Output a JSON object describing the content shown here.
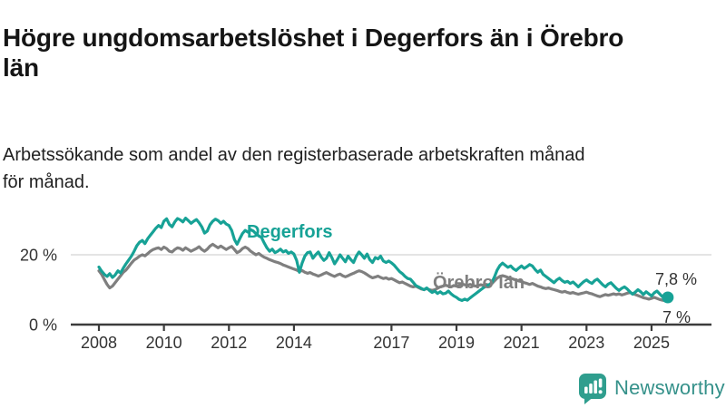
{
  "header": {
    "title": "Högre ungdomsarbetslöshet i Degerfors än i Örebro län",
    "subtitle": "Arbetssökande som andel av den registerbaserade arbetskraften månad för månad."
  },
  "colors": {
    "accent_teal": "#17a296",
    "line_gray": "#7f7f7f",
    "grid": "#dcdcdc",
    "axis": "#3c3c3c",
    "axis_text": "#333333",
    "title_text": "#151515",
    "end_label_text": "#333333",
    "logo_teal": "#2f9e8e",
    "logo_text": "#35918a"
  },
  "footer": {
    "brand": "Newsworthy",
    "logo_icon": "speech-bubble-bar-chart-icon"
  },
  "chart_data": {
    "type": "line",
    "title": "Högre ungdomsarbetslöshet i Degerfors än i Örebro län",
    "subtitle": "Arbetssökande som andel av den registerbaserade arbetskraften månad för månad.",
    "xlabel": "",
    "ylabel": "",
    "x_unit": "month",
    "x_start": {
      "year": 2008,
      "month": 1
    },
    "x_end": {
      "year": 2025,
      "month": 7
    },
    "ylim": [
      0,
      33
    ],
    "grid": "single horizontal gridline at 20%",
    "legend_position": "inline labels on lines",
    "yticks": [
      {
        "value": 20,
        "label": "20 %"
      },
      {
        "value": 0,
        "label": "0 %"
      }
    ],
    "xticks": [
      2008,
      2010,
      2012,
      2014,
      2017,
      2019,
      2021,
      2023,
      2025
    ],
    "series": [
      {
        "name": "Degerfors",
        "color": "#17a296",
        "end_label": "7,8 %",
        "end_value": 7.8,
        "values": [
          16.5,
          15.3,
          14.4,
          13.8,
          14.6,
          13.5,
          14.2,
          15.4,
          14.8,
          16.2,
          17.4,
          18.5,
          19.6,
          21.0,
          22.6,
          23.6,
          24.1,
          23.2,
          24.6,
          25.6,
          26.6,
          27.6,
          28.4,
          27.8,
          29.6,
          30.3,
          28.7,
          28.0,
          29.4,
          30.4,
          30.0,
          29.4,
          30.5,
          29.8,
          29.0,
          29.6,
          30.1,
          29.2,
          28.0,
          26.2,
          26.8,
          28.6,
          29.6,
          30.2,
          29.8,
          29.0,
          29.6,
          28.8,
          28.4,
          27.0,
          24.4,
          23.0,
          24.6,
          26.1,
          27.0,
          26.5,
          27.2,
          26.8,
          26.0,
          25.4,
          25.0,
          23.4,
          22.0,
          21.0,
          21.6,
          20.6,
          21.0,
          21.6,
          20.8,
          21.2,
          20.4,
          20.8,
          20.2,
          18.4,
          15.0,
          17.6,
          19.6,
          20.6,
          20.8,
          19.0,
          20.0,
          20.8,
          19.4,
          18.4,
          19.0,
          20.6,
          19.2,
          17.4,
          18.6,
          20.0,
          19.0,
          18.0,
          19.6,
          18.6,
          17.8,
          19.6,
          20.8,
          20.0,
          19.0,
          20.2,
          18.6,
          17.8,
          19.2,
          18.8,
          19.6,
          18.2,
          17.8,
          18.2,
          17.7,
          17.0,
          16.1,
          15.2,
          14.6,
          13.8,
          13.2,
          13.0,
          12.1,
          11.2,
          10.8,
          10.4,
          10.0,
          10.5,
          9.8,
          9.2,
          9.6,
          8.9,
          9.4,
          8.8,
          9.0,
          9.6,
          8.8,
          8.2,
          7.8,
          7.2,
          6.9,
          7.3,
          7.0,
          7.6,
          8.2,
          8.8,
          9.4,
          10.0,
          10.6,
          11.0,
          11.4,
          12.0,
          13.6,
          15.6,
          16.9,
          17.6,
          17.0,
          16.4,
          16.8,
          16.0,
          15.5,
          16.2,
          16.8,
          16.1,
          16.6,
          17.2,
          16.8,
          15.8,
          15.0,
          15.6,
          14.4,
          13.8,
          13.2,
          12.6,
          12.0,
          12.8,
          13.3,
          12.6,
          12.1,
          12.4,
          11.8,
          12.2,
          11.5,
          10.8,
          11.6,
          12.3,
          12.8,
          12.2,
          11.8,
          12.6,
          13.0,
          12.2,
          11.4,
          10.8,
          11.6,
          12.0,
          11.2,
          10.4,
          9.8,
          10.4,
          10.8,
          10.2,
          9.4,
          8.7,
          9.3,
          10.0,
          9.4,
          8.6,
          9.4,
          8.8,
          8.2,
          9.1,
          9.6,
          8.8,
          8.0,
          7.8,
          7.8
        ]
      },
      {
        "name": "Örebro län",
        "color": "#7f7f7f",
        "end_label": "7 %",
        "end_value": 7.0,
        "values": [
          15.4,
          14.4,
          12.9,
          11.5,
          10.5,
          11.0,
          12.0,
          13.0,
          14.0,
          15.0,
          15.6,
          16.6,
          17.6,
          18.5,
          19.0,
          19.6,
          20.0,
          19.7,
          20.3,
          21.0,
          21.5,
          21.8,
          22.0,
          21.5,
          22.2,
          21.8,
          21.0,
          20.8,
          21.5,
          22.0,
          21.8,
          21.3,
          22.0,
          21.5,
          21.0,
          21.4,
          21.8,
          22.3,
          21.5,
          21.0,
          21.6,
          22.5,
          23.0,
          22.5,
          22.0,
          22.5,
          22.0,
          21.5,
          22.0,
          22.4,
          21.5,
          20.6,
          21.0,
          21.8,
          22.2,
          21.8,
          21.0,
          20.5,
          20.0,
          20.4,
          19.8,
          19.3,
          19.0,
          18.6,
          18.3,
          18.0,
          17.8,
          17.5,
          17.1,
          16.8,
          16.5,
          16.2,
          15.9,
          15.6,
          15.2,
          15.5,
          15.0,
          14.7,
          14.9,
          14.5,
          14.2,
          13.9,
          14.2,
          14.6,
          14.9,
          14.5,
          14.1,
          13.8,
          14.2,
          14.5,
          14.0,
          13.7,
          14.0,
          14.4,
          14.7,
          15.1,
          15.4,
          15.2,
          14.8,
          14.3,
          13.8,
          13.4,
          13.6,
          13.9,
          13.5,
          13.2,
          13.4,
          13.0,
          13.2,
          12.8,
          12.4,
          12.0,
          12.2,
          11.8,
          11.4,
          11.0,
          10.8,
          11.0,
          10.6,
          10.2,
          10.0,
          10.3,
          10.0,
          9.8,
          10.0,
          10.4,
          10.8,
          11.0,
          11.3,
          11.0,
          10.8,
          11.2,
          11.0,
          11.3,
          11.6,
          11.4,
          11.2,
          11.5,
          11.3,
          11.0,
          11.2,
          11.4,
          11.2,
          11.5,
          11.3,
          11.7,
          12.5,
          13.3,
          13.8,
          14.0,
          13.8,
          13.5,
          13.3,
          13.0,
          12.8,
          12.5,
          12.3,
          12.0,
          11.8,
          11.5,
          11.8,
          11.4,
          11.0,
          10.8,
          10.5,
          10.3,
          10.5,
          10.2,
          10.0,
          9.8,
          9.5,
          9.3,
          9.5,
          9.2,
          9.0,
          9.2,
          8.9,
          8.7,
          8.9,
          9.1,
          9.3,
          9.0,
          8.8,
          8.5,
          8.2,
          8.0,
          8.3,
          8.6,
          8.4,
          8.6,
          8.8,
          8.6,
          8.8,
          8.5,
          8.7,
          9.0,
          9.2,
          8.9,
          8.6,
          8.3,
          8.0,
          7.7,
          7.5,
          7.3,
          7.5,
          7.8,
          7.5,
          7.2,
          7.0,
          6.9,
          7.0
        ]
      }
    ]
  }
}
